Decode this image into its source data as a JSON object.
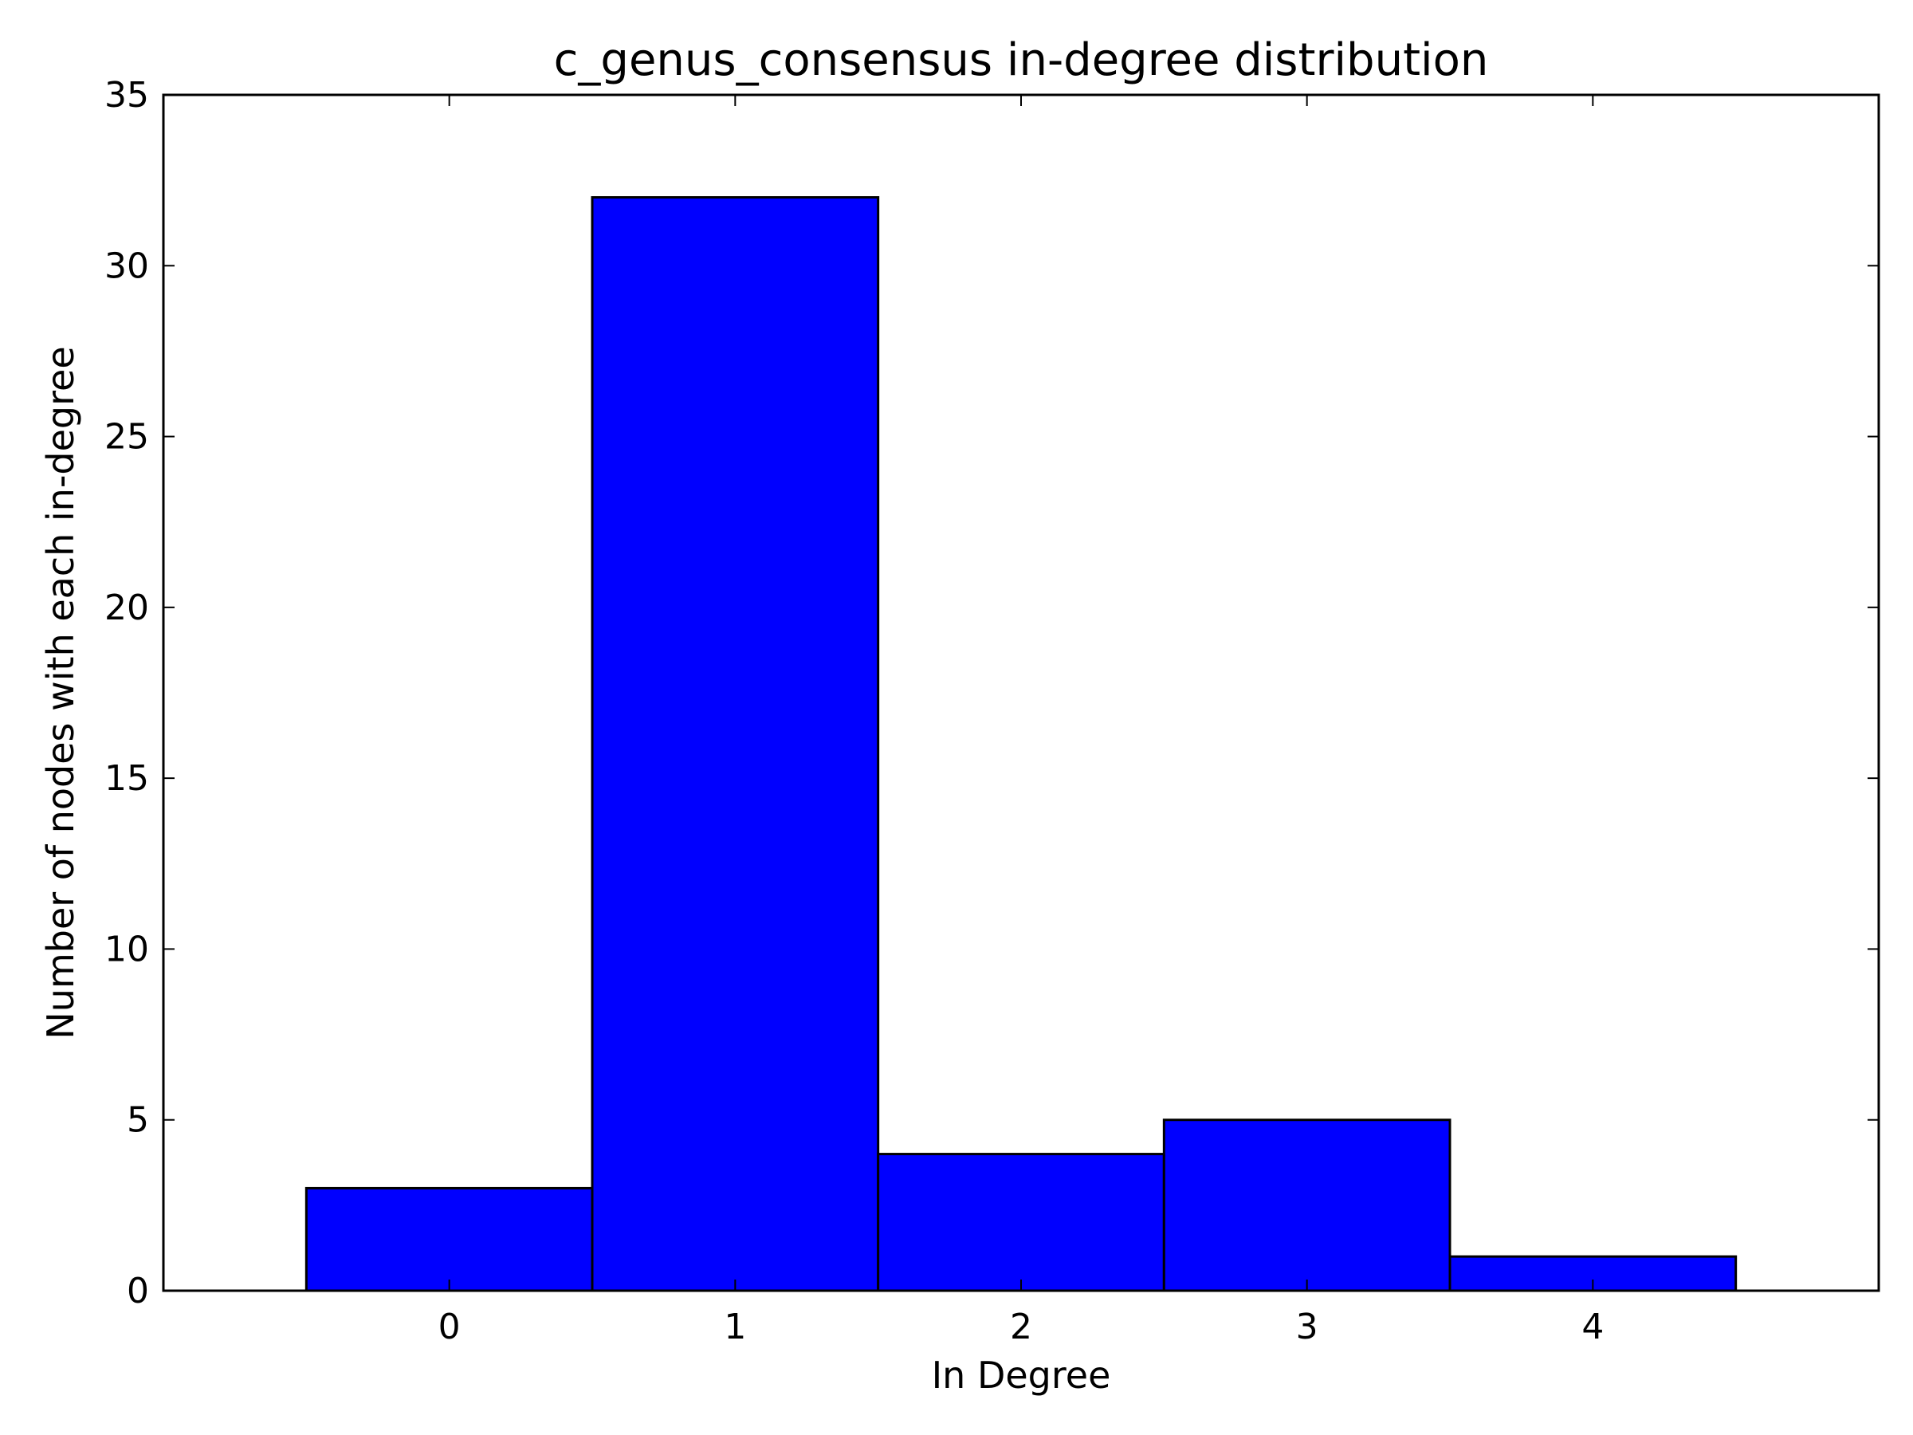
{
  "chart_data": {
    "type": "bar",
    "title": "c_genus_consensus in-degree distribution",
    "xlabel": "In Degree",
    "ylabel": "Number of nodes with each in-degree",
    "categories": [
      "0",
      "1",
      "2",
      "3",
      "4"
    ],
    "x": [
      0,
      1,
      2,
      3,
      4
    ],
    "values": [
      3,
      32,
      4,
      5,
      1
    ],
    "bar_width": 1,
    "xlim": [
      -1,
      5
    ],
    "ylim": [
      0,
      35
    ],
    "xticks": [
      0,
      1,
      2,
      3,
      4
    ],
    "yticks": [
      0,
      5,
      10,
      15,
      20,
      25,
      30,
      35
    ],
    "grid": false,
    "legend": "none",
    "colors": {
      "bar_fill": "#0000ff",
      "bar_edge": "#000000",
      "axes": "#000000",
      "background": "#ffffff"
    }
  }
}
